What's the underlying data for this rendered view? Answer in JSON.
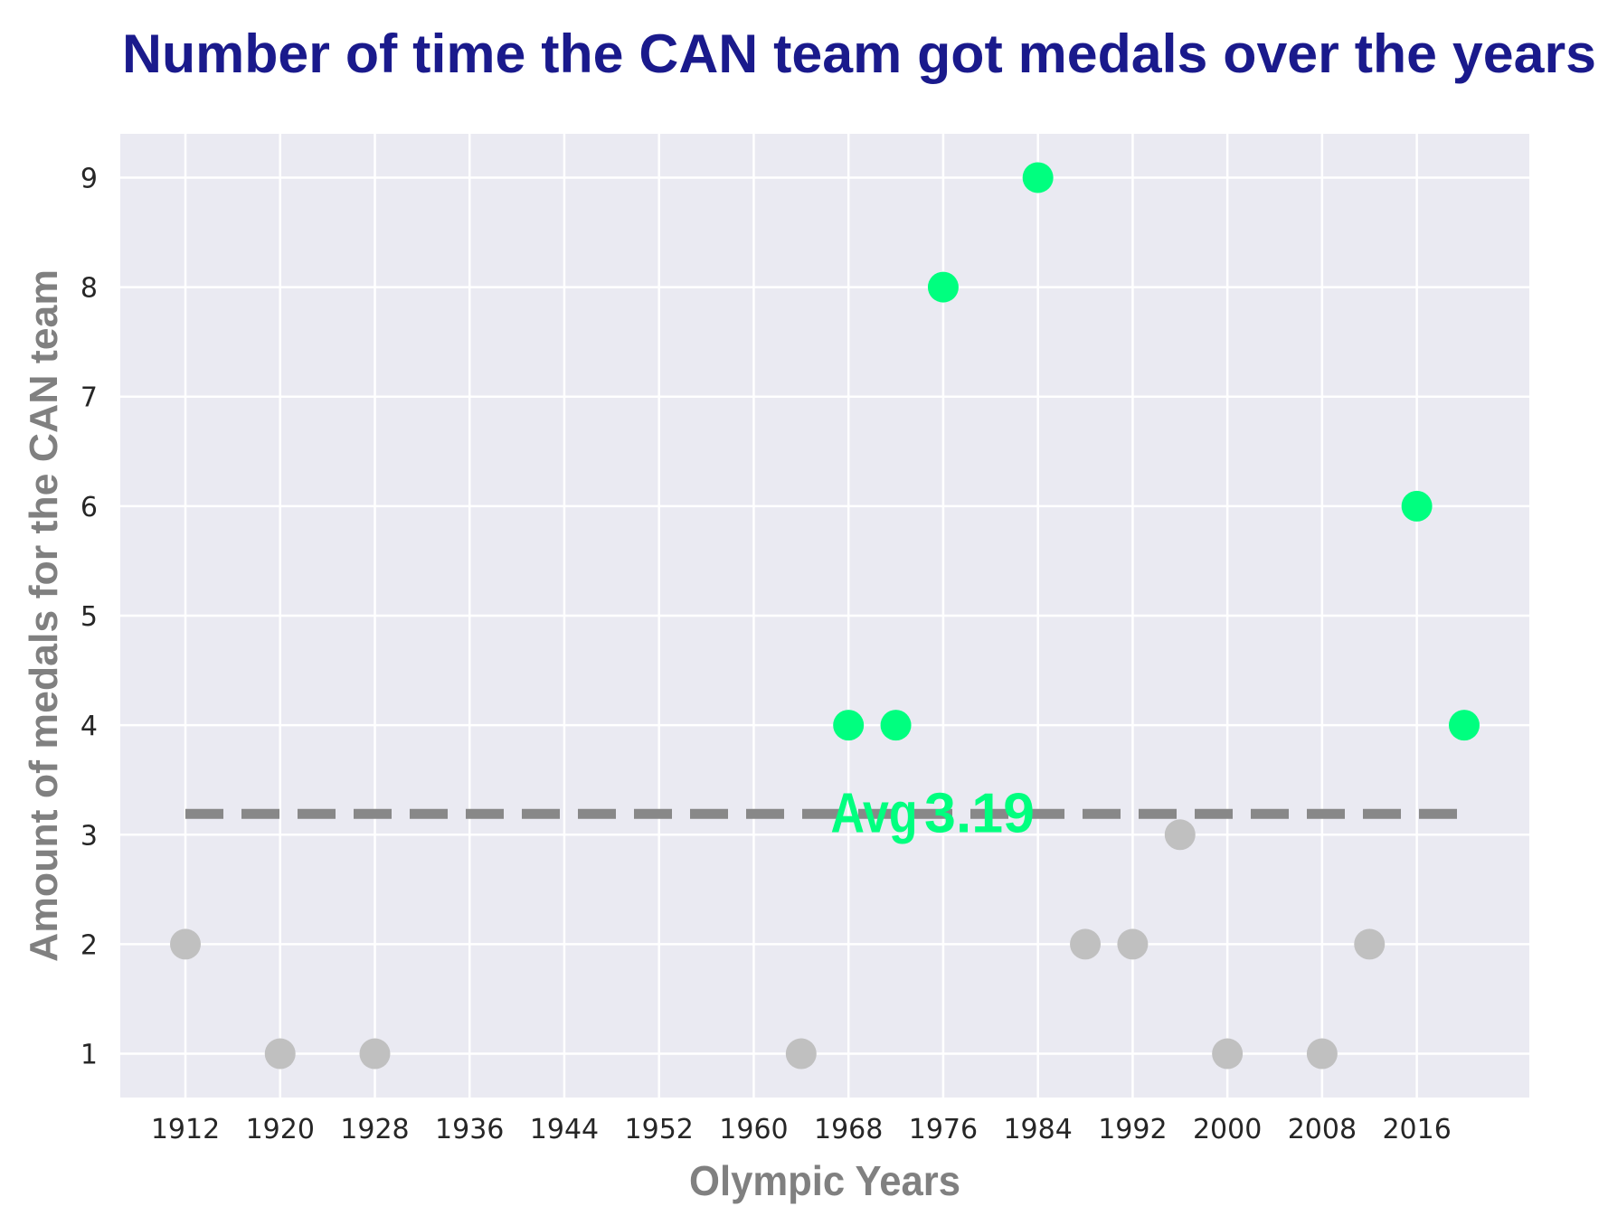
{
  "chart_data": {
    "type": "scatter",
    "title": "Number of time the CAN team got medals over the years",
    "xlabel": "Olympic Years",
    "ylabel": "Amount of medals for the CAN team",
    "x_ticks": [
      "1912",
      "1920",
      "1928",
      "1936",
      "1944",
      "1952",
      "1960",
      "1968",
      "1976",
      "1984",
      "1992",
      "2000",
      "2008",
      "2016"
    ],
    "y_ticks": [
      "1",
      "2",
      "3",
      "4",
      "5",
      "6",
      "7",
      "8",
      "9"
    ],
    "xlim": [
      1906.5,
      2025.5
    ],
    "ylim": [
      0.6,
      9.4
    ],
    "grid": true,
    "points": [
      {
        "x": 1912,
        "y": 2
      },
      {
        "x": 1920,
        "y": 1
      },
      {
        "x": 1928,
        "y": 1
      },
      {
        "x": 1964,
        "y": 1
      },
      {
        "x": 1968,
        "y": 4
      },
      {
        "x": 1972,
        "y": 4
      },
      {
        "x": 1976,
        "y": 8
      },
      {
        "x": 1984,
        "y": 9
      },
      {
        "x": 1988,
        "y": 2
      },
      {
        "x": 1992,
        "y": 2
      },
      {
        "x": 1996,
        "y": 3
      },
      {
        "x": 2000,
        "y": 1
      },
      {
        "x": 2008,
        "y": 1
      },
      {
        "x": 2012,
        "y": 2
      },
      {
        "x": 2016,
        "y": 6
      },
      {
        "x": 2020,
        "y": 4
      }
    ],
    "average": {
      "value": 3.19,
      "label": "Avg",
      "value_label": "3.19",
      "x_start": 1912,
      "x_end": 2020
    },
    "colors": {
      "above_average": "#00ff7f",
      "below_average": "#c0c0c0",
      "average_line": "#888888",
      "annotation": "#00ff7f",
      "title": "#1a1a8c",
      "axis_label": "#808080",
      "plot_background": "#eaeaf2",
      "grid": "#ffffff",
      "tick_text": "#262626"
    }
  }
}
